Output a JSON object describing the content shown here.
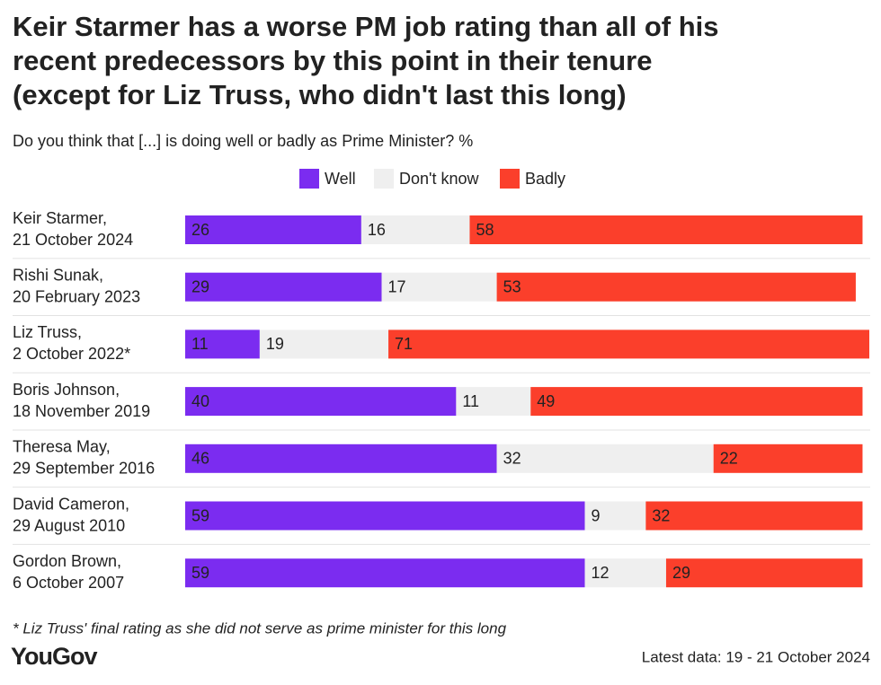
{
  "chart_data": {
    "type": "stacked-bar",
    "title": [
      "Keir Starmer has a worse PM job rating than all of his",
      "recent predecessors by this point in their tenure",
      "(except for Liz Truss, who didn't last this long)"
    ],
    "subtitle": "Do you think that [...] is doing well or badly as Prime Minister? %",
    "categories": [
      [
        "Keir Starmer,",
        "21 October 2024"
      ],
      [
        "Rishi Sunak,",
        "20 February 2023"
      ],
      [
        "Liz Truss,",
        "2 October 2022*"
      ],
      [
        "Boris Johnson,",
        "18 November 2019"
      ],
      [
        "Theresa May,",
        "29 September 2016"
      ],
      [
        "David Cameron,",
        "29 August 2010"
      ],
      [
        "Gordon Brown,",
        "6 October 2007"
      ]
    ],
    "series": [
      {
        "name": "Well",
        "color": "#7b2cf0",
        "label_color": "#ffffff",
        "values": [
          26,
          29,
          11,
          40,
          46,
          59,
          59
        ]
      },
      {
        "name": "Don't know",
        "color": "#efefef",
        "label_color": "#444444",
        "values": [
          16,
          17,
          19,
          11,
          32,
          9,
          12
        ]
      },
      {
        "name": "Badly",
        "color": "#fb3f2b",
        "label_color": "#ffffff",
        "values": [
          58,
          53,
          71,
          49,
          22,
          32,
          29
        ]
      }
    ],
    "footnote": "* Liz Truss' final rating as she did not serve as prime minister for this long",
    "source": "YouGov",
    "note": "Latest data: 19 - 21 October 2024"
  }
}
